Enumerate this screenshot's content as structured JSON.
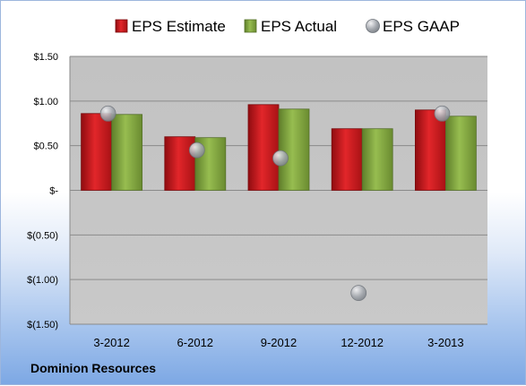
{
  "chart_data": {
    "type": "bar",
    "categories": [
      "3-2012",
      "6-2012",
      "9-2012",
      "12-2012",
      "3-2013"
    ],
    "series": [
      {
        "name": "EPS Estimate",
        "kind": "bar",
        "values": [
          0.86,
          0.6,
          0.96,
          0.69,
          0.9
        ],
        "color": "#c0181c"
      },
      {
        "name": "EPS Actual",
        "kind": "bar",
        "values": [
          0.85,
          0.59,
          0.91,
          0.69,
          0.83
        ],
        "color": "#7da03c"
      },
      {
        "name": "EPS GAAP",
        "kind": "scatter",
        "values": [
          0.86,
          0.45,
          0.36,
          -1.15,
          0.86
        ],
        "color": "#9aa0a8"
      }
    ],
    "ylim": [
      -1.5,
      1.5
    ],
    "yticks": [
      1.5,
      1.0,
      0.5,
      0,
      -0.5,
      -1.0,
      -1.5
    ],
    "ytick_labels": [
      "$1.50",
      "$1.00",
      "$0.50",
      "$-",
      "$(0.50)",
      "$(1.00)",
      "$(1.50)"
    ],
    "grid": true,
    "legend_position": "top"
  },
  "footer": {
    "company": "Dominion Resources"
  }
}
